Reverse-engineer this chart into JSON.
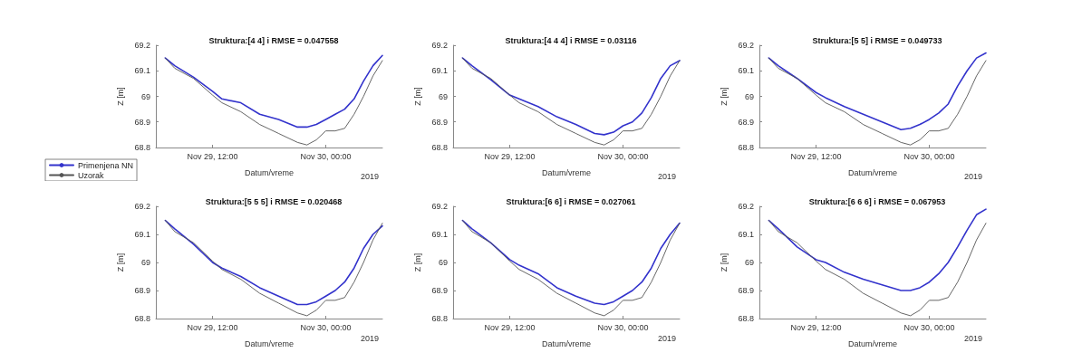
{
  "chart_data": [
    {
      "type": "line",
      "title": "Struktura:[4 4] i RMSE = 0.047558",
      "xlabel": "Datum/vreme",
      "ylabel": "Z [m]",
      "annotations": [
        "2019"
      ],
      "legend": "bottom left",
      "x": [
        "2019-11-29T07:00",
        "2019-11-29T08:00",
        "2019-11-29T10:00",
        "2019-11-29T12:00",
        "2019-11-29T13:00",
        "2019-11-29T15:00",
        "2019-11-29T17:00",
        "2019-11-29T19:00",
        "2019-11-29T21:00",
        "2019-11-29T22:00",
        "2019-11-29T23:00",
        "2019-11-30T00:00",
        "2019-11-30T01:00",
        "2019-11-30T02:00",
        "2019-11-30T03:00",
        "2019-11-30T04:00",
        "2019-11-30T05:00",
        "2019-11-30T06:00"
      ],
      "xlim": [
        "2019-11-29T06:00",
        "2019-11-30T06:00"
      ],
      "xticks": [
        {
          "value": "2019-11-29T12:00",
          "label": "Nov 29, 12:00"
        },
        {
          "value": "2019-11-30T00:00",
          "label": "Nov 30, 00:00"
        }
      ],
      "ylim": [
        68.8,
        69.2
      ],
      "yticks": [
        {
          "value": 68.8,
          "label": "68.8"
        },
        {
          "value": 68.9,
          "label": "68.9"
        },
        {
          "value": 69,
          "label": "69"
        },
        {
          "value": 69.1,
          "label": "69.1"
        },
        {
          "value": 69.2,
          "label": "69.2"
        }
      ],
      "series": [
        {
          "name": "Primenjena NN",
          "color": "#3333cc",
          "values": [
            69.15,
            69.12,
            69.075,
            69.02,
            68.99,
            68.975,
            68.93,
            68.91,
            68.88,
            68.88,
            68.89,
            68.91,
            68.93,
            68.95,
            68.99,
            69.06,
            69.12,
            69.16
          ]
        },
        {
          "name": "Uzorak",
          "color": "#555555",
          "values": [
            69.15,
            69.11,
            69.07,
            69.005,
            68.975,
            68.94,
            68.89,
            68.855,
            68.82,
            68.81,
            68.83,
            68.865,
            68.865,
            68.875,
            68.93,
            69.0,
            69.08,
            69.14
          ]
        }
      ]
    },
    {
      "type": "line",
      "title": "Struktura:[4 4 4] i RMSE = 0.03116",
      "xlabel": "Datum/vreme",
      "ylabel": "Z [m]",
      "annotations": [
        "2019"
      ],
      "x": [
        "2019-11-29T07:00",
        "2019-11-29T08:00",
        "2019-11-29T10:00",
        "2019-11-29T12:00",
        "2019-11-29T13:00",
        "2019-11-29T15:00",
        "2019-11-29T17:00",
        "2019-11-29T19:00",
        "2019-11-29T21:00",
        "2019-11-29T22:00",
        "2019-11-29T23:00",
        "2019-11-30T00:00",
        "2019-11-30T01:00",
        "2019-11-30T02:00",
        "2019-11-30T03:00",
        "2019-11-30T04:00",
        "2019-11-30T05:00",
        "2019-11-30T06:00"
      ],
      "xlim": [
        "2019-11-29T06:00",
        "2019-11-30T06:00"
      ],
      "xticks": [
        {
          "value": "2019-11-29T12:00",
          "label": "Nov 29, 12:00"
        },
        {
          "value": "2019-11-30T00:00",
          "label": "Nov 30, 00:00"
        }
      ],
      "ylim": [
        68.8,
        69.2
      ],
      "yticks": [
        {
          "value": 68.8,
          "label": "68.8"
        },
        {
          "value": 68.9,
          "label": "68.9"
        },
        {
          "value": 69,
          "label": "69"
        },
        {
          "value": 69.1,
          "label": "69.1"
        },
        {
          "value": 69.2,
          "label": "69.2"
        }
      ],
      "series": [
        {
          "color": "#3333cc",
          "values": [
            69.15,
            69.12,
            69.065,
            69.005,
            68.99,
            68.96,
            68.92,
            68.89,
            68.855,
            68.85,
            68.86,
            68.885,
            68.9,
            68.935,
            68.995,
            69.07,
            69.12,
            69.14
          ]
        },
        {
          "color": "#555555",
          "values": [
            69.15,
            69.11,
            69.07,
            69.005,
            68.975,
            68.94,
            68.89,
            68.855,
            68.82,
            68.81,
            68.83,
            68.865,
            68.865,
            68.875,
            68.93,
            69.0,
            69.08,
            69.14
          ]
        }
      ]
    },
    {
      "type": "line",
      "title": "Struktura:[5 5] i RMSE = 0.049733",
      "xlabel": "Datum/vreme",
      "ylabel": "Z [m]",
      "annotations": [
        "2019"
      ],
      "x": [
        "2019-11-29T07:00",
        "2019-11-29T08:00",
        "2019-11-29T10:00",
        "2019-11-29T12:00",
        "2019-11-29T13:00",
        "2019-11-29T15:00",
        "2019-11-29T17:00",
        "2019-11-29T19:00",
        "2019-11-29T21:00",
        "2019-11-29T22:00",
        "2019-11-29T23:00",
        "2019-11-30T00:00",
        "2019-11-30T01:00",
        "2019-11-30T02:00",
        "2019-11-30T03:00",
        "2019-11-30T04:00",
        "2019-11-30T05:00",
        "2019-11-30T06:00"
      ],
      "xlim": [
        "2019-11-29T06:00",
        "2019-11-30T06:00"
      ],
      "xticks": [
        {
          "value": "2019-11-29T12:00",
          "label": "Nov 29, 12:00"
        },
        {
          "value": "2019-11-30T00:00",
          "label": "Nov 30, 00:00"
        }
      ],
      "ylim": [
        68.8,
        69.2
      ],
      "yticks": [
        {
          "value": 68.8,
          "label": "68.8"
        },
        {
          "value": 68.9,
          "label": "68.9"
        },
        {
          "value": 69,
          "label": "69"
        },
        {
          "value": 69.1,
          "label": "69.1"
        },
        {
          "value": 69.2,
          "label": "69.2"
        }
      ],
      "series": [
        {
          "color": "#3333cc",
          "values": [
            69.15,
            69.12,
            69.07,
            69.015,
            68.995,
            68.96,
            68.93,
            68.9,
            68.87,
            68.875,
            68.89,
            68.91,
            68.935,
            68.97,
            69.04,
            69.1,
            69.15,
            69.17
          ]
        },
        {
          "color": "#555555",
          "values": [
            69.15,
            69.11,
            69.07,
            69.005,
            68.975,
            68.94,
            68.89,
            68.855,
            68.82,
            68.81,
            68.83,
            68.865,
            68.865,
            68.875,
            68.93,
            69.0,
            69.08,
            69.14
          ]
        }
      ]
    },
    {
      "type": "line",
      "title": "Struktura:[5 5 5] i RMSE = 0.020468",
      "xlabel": "Datum/vreme",
      "ylabel": "Z [m]",
      "annotations": [
        "2019"
      ],
      "x": [
        "2019-11-29T07:00",
        "2019-11-29T08:00",
        "2019-11-29T10:00",
        "2019-11-29T12:00",
        "2019-11-29T13:00",
        "2019-11-29T15:00",
        "2019-11-29T17:00",
        "2019-11-29T19:00",
        "2019-11-29T21:00",
        "2019-11-29T22:00",
        "2019-11-29T23:00",
        "2019-11-30T00:00",
        "2019-11-30T01:00",
        "2019-11-30T02:00",
        "2019-11-30T03:00",
        "2019-11-30T04:00",
        "2019-11-30T05:00",
        "2019-11-30T06:00"
      ],
      "xlim": [
        "2019-11-29T06:00",
        "2019-11-30T06:00"
      ],
      "xticks": [
        {
          "value": "2019-11-29T12:00",
          "label": "Nov 29, 12:00"
        },
        {
          "value": "2019-11-30T00:00",
          "label": "Nov 30, 00:00"
        }
      ],
      "ylim": [
        68.8,
        69.2
      ],
      "yticks": [
        {
          "value": 68.8,
          "label": "68.8"
        },
        {
          "value": 68.9,
          "label": "68.9"
        },
        {
          "value": 69,
          "label": "69"
        },
        {
          "value": 69.1,
          "label": "69.1"
        },
        {
          "value": 69.2,
          "label": "69.2"
        }
      ],
      "series": [
        {
          "color": "#3333cc",
          "values": [
            69.15,
            69.12,
            69.065,
            69.0,
            68.98,
            68.95,
            68.91,
            68.88,
            68.85,
            68.85,
            68.86,
            68.88,
            68.9,
            68.93,
            68.98,
            69.05,
            69.1,
            69.13
          ]
        },
        {
          "color": "#555555",
          "values": [
            69.15,
            69.11,
            69.07,
            69.005,
            68.975,
            68.94,
            68.89,
            68.855,
            68.82,
            68.81,
            68.83,
            68.865,
            68.865,
            68.875,
            68.93,
            69.0,
            69.08,
            69.14
          ]
        }
      ]
    },
    {
      "type": "line",
      "title": "Struktura:[6 6] i RMSE = 0.027061",
      "xlabel": "Datum/vreme",
      "ylabel": "Z [m]",
      "annotations": [
        "2019"
      ],
      "x": [
        "2019-11-29T07:00",
        "2019-11-29T08:00",
        "2019-11-29T10:00",
        "2019-11-29T12:00",
        "2019-11-29T13:00",
        "2019-11-29T15:00",
        "2019-11-29T17:00",
        "2019-11-29T19:00",
        "2019-11-29T21:00",
        "2019-11-29T22:00",
        "2019-11-29T23:00",
        "2019-11-30T00:00",
        "2019-11-30T01:00",
        "2019-11-30T02:00",
        "2019-11-30T03:00",
        "2019-11-30T04:00",
        "2019-11-30T05:00",
        "2019-11-30T06:00"
      ],
      "xlim": [
        "2019-11-29T06:00",
        "2019-11-30T06:00"
      ],
      "xticks": [
        {
          "value": "2019-11-29T12:00",
          "label": "Nov 29, 12:00"
        },
        {
          "value": "2019-11-30T00:00",
          "label": "Nov 30, 00:00"
        }
      ],
      "ylim": [
        68.8,
        69.2
      ],
      "yticks": [
        {
          "value": 68.8,
          "label": "68.8"
        },
        {
          "value": 68.9,
          "label": "68.9"
        },
        {
          "value": 69,
          "label": "69"
        },
        {
          "value": 69.1,
          "label": "69.1"
        },
        {
          "value": 69.2,
          "label": "69.2"
        }
      ],
      "series": [
        {
          "color": "#3333cc",
          "values": [
            69.15,
            69.12,
            69.07,
            69.01,
            68.99,
            68.96,
            68.91,
            68.88,
            68.855,
            68.85,
            68.86,
            68.88,
            68.9,
            68.93,
            68.98,
            69.05,
            69.1,
            69.14
          ]
        },
        {
          "color": "#555555",
          "values": [
            69.15,
            69.11,
            69.07,
            69.005,
            68.975,
            68.94,
            68.89,
            68.855,
            68.82,
            68.81,
            68.83,
            68.865,
            68.865,
            68.875,
            68.93,
            69.0,
            69.08,
            69.14
          ]
        }
      ]
    },
    {
      "type": "line",
      "title": "Struktura:[6 6 6] i RMSE = 0.067953",
      "xlabel": "Datum/vreme",
      "ylabel": "Z [m]",
      "annotations": [
        "2019"
      ],
      "x": [
        "2019-11-29T07:00",
        "2019-11-29T08:00",
        "2019-11-29T10:00",
        "2019-11-29T12:00",
        "2019-11-29T13:00",
        "2019-11-29T15:00",
        "2019-11-29T17:00",
        "2019-11-29T19:00",
        "2019-11-29T21:00",
        "2019-11-29T22:00",
        "2019-11-29T23:00",
        "2019-11-30T00:00",
        "2019-11-30T01:00",
        "2019-11-30T02:00",
        "2019-11-30T03:00",
        "2019-11-30T04:00",
        "2019-11-30T05:00",
        "2019-11-30T06:00"
      ],
      "xlim": [
        "2019-11-29T06:00",
        "2019-11-30T06:00"
      ],
      "xticks": [
        {
          "value": "2019-11-29T12:00",
          "label": "Nov 29, 12:00"
        },
        {
          "value": "2019-11-30T00:00",
          "label": "Nov 30, 00:00"
        }
      ],
      "ylim": [
        68.8,
        69.2
      ],
      "yticks": [
        {
          "value": 68.8,
          "label": "68.8"
        },
        {
          "value": 68.9,
          "label": "68.9"
        },
        {
          "value": 69,
          "label": "69"
        },
        {
          "value": 69.1,
          "label": "69.1"
        },
        {
          "value": 69.2,
          "label": "69.2"
        }
      ],
      "series": [
        {
          "color": "#3333cc",
          "values": [
            69.15,
            69.12,
            69.055,
            69.01,
            69.0,
            68.965,
            68.94,
            68.92,
            68.9,
            68.9,
            68.91,
            68.93,
            68.96,
            69.0,
            69.055,
            69.115,
            69.17,
            69.19
          ]
        },
        {
          "color": "#555555",
          "values": [
            69.15,
            69.11,
            69.07,
            69.005,
            68.975,
            68.94,
            68.89,
            68.855,
            68.82,
            68.81,
            68.83,
            68.865,
            68.865,
            68.875,
            68.93,
            69.0,
            69.08,
            69.14
          ]
        }
      ]
    }
  ]
}
